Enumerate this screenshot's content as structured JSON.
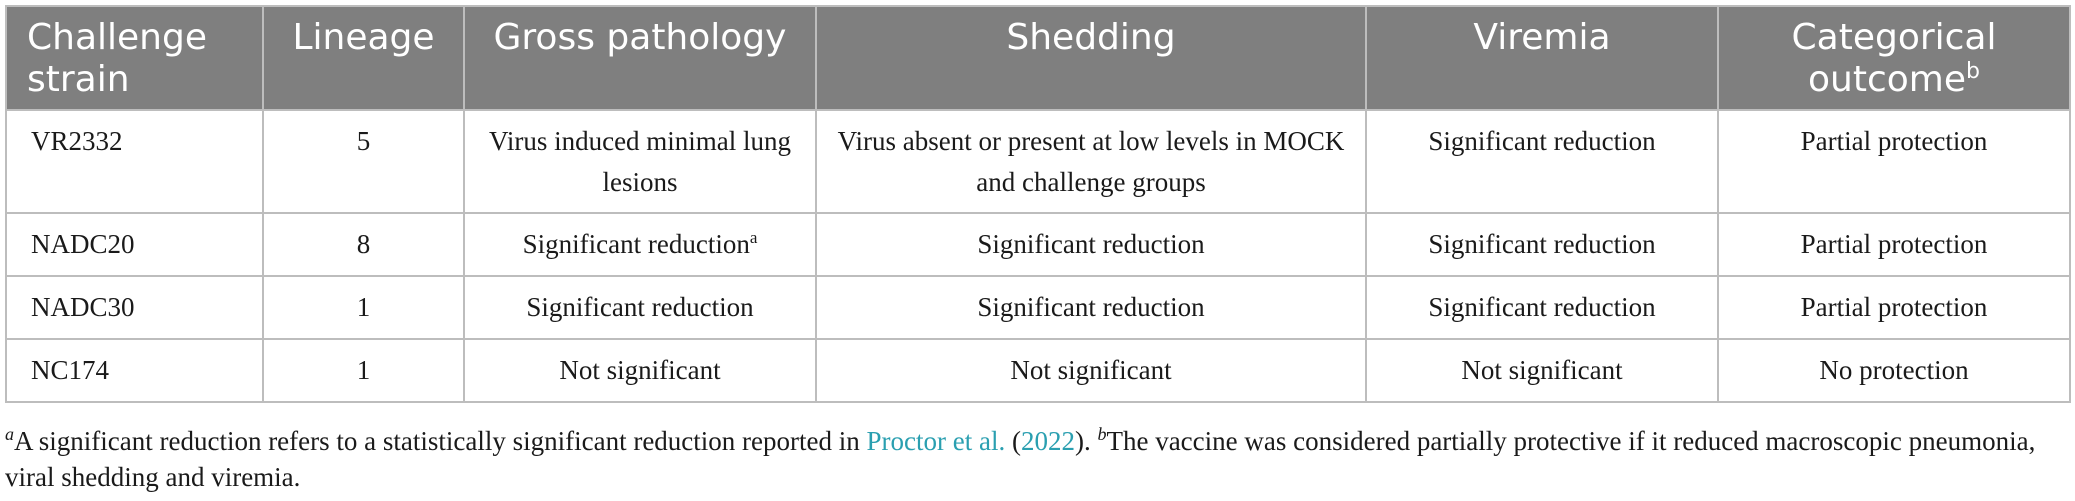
{
  "table": {
    "headers": {
      "challenge_strain": "Challenge strain",
      "lineage": "Lineage",
      "gross_pathology": "Gross pathology",
      "shedding": "Shedding",
      "viremia": "Viremia",
      "categorical_outcome": "Categorical outcome",
      "categorical_outcome_sup": "b"
    },
    "rows": [
      {
        "strain": "VR2332",
        "lineage": "5",
        "gross_pathology": "Virus induced minimal lung lesions",
        "gross_pathology_sup": "",
        "shedding": "Virus absent or present at low levels in MOCK and challenge groups",
        "viremia": "Significant reduction",
        "outcome": "Partial protection"
      },
      {
        "strain": "NADC20",
        "lineage": "8",
        "gross_pathology": "Significant reduction",
        "gross_pathology_sup": "a",
        "shedding": "Significant reduction",
        "viremia": "Significant reduction",
        "outcome": "Partial protection"
      },
      {
        "strain": "NADC30",
        "lineage": "1",
        "gross_pathology": "Significant reduction",
        "gross_pathology_sup": "",
        "shedding": "Significant reduction",
        "viremia": "Significant reduction",
        "outcome": "Partial protection"
      },
      {
        "strain": "NC174",
        "lineage": "1",
        "gross_pathology": "Not significant",
        "gross_pathology_sup": "",
        "shedding": "Not significant",
        "viremia": "Not significant",
        "outcome": "No protection"
      }
    ]
  },
  "footnote": {
    "a_marker": "a",
    "a_text": "A significant reduction refers to a statistically significant reduction reported in ",
    "a_link_text": "Proctor et al.",
    "a_paren_open": " (",
    "a_year": "2022",
    "a_paren_close": "). ",
    "b_marker": "b",
    "b_text": "The vaccine was considered partially protective if it reduced macroscopic pneumonia, viral shedding and viremia."
  },
  "colors": {
    "header_bg": "#7f7f7f",
    "header_text": "#ffffff",
    "border": "#bdbdbd",
    "link": "#2a9fb0"
  }
}
